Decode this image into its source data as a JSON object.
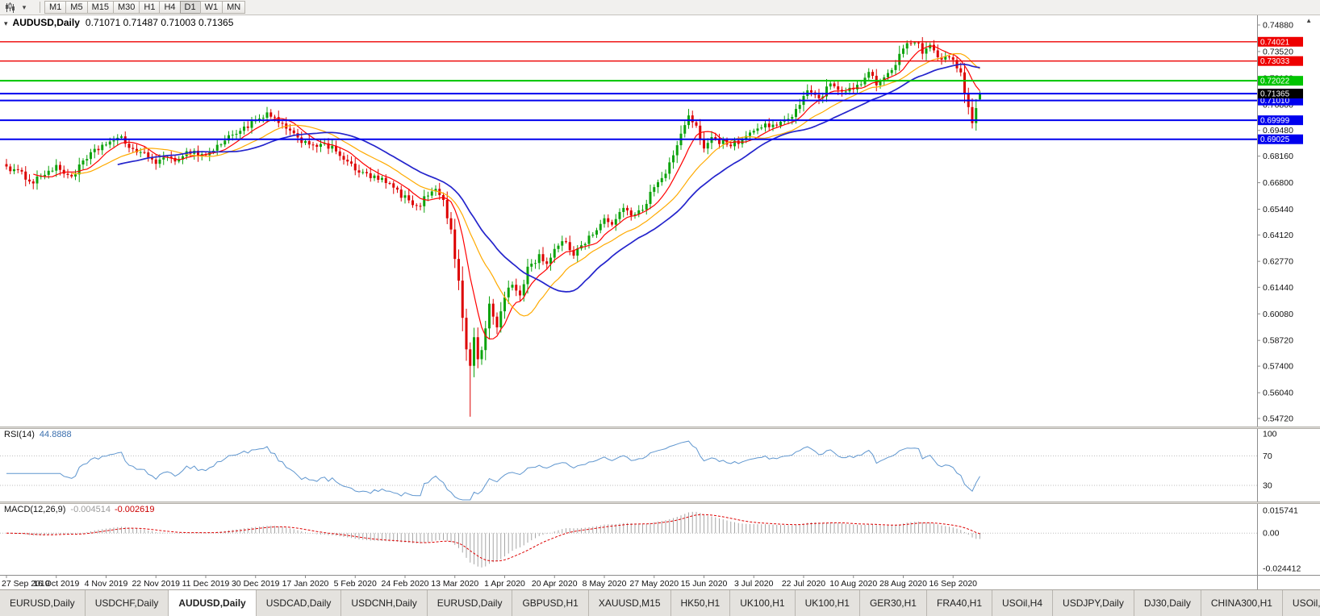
{
  "toolbar": {
    "dropdown_caret": "▾",
    "timeframes": [
      "M1",
      "M5",
      "M15",
      "M30",
      "H1",
      "H4",
      "D1",
      "W1",
      "MN"
    ],
    "active_timeframe": "D1"
  },
  "window": {
    "scroll_up_icon": "▲"
  },
  "chart": {
    "one_click_icon": "▾",
    "title_symbol": "AUDUSD,Daily",
    "ohlc_text": "0.71071 0.71487 0.71003 0.71365",
    "price_range": {
      "top": 0.7488,
      "bottom": 0.5472
    },
    "y_ticks": [
      "0.74880",
      "0.73520",
      "0.72160",
      "0.70800",
      "0.69480",
      "0.68160",
      "0.66800",
      "0.65440",
      "0.64120",
      "0.62770",
      "0.61440",
      "0.60080",
      "0.58720",
      "0.57400",
      "0.56040",
      "0.54720"
    ],
    "hlines": [
      {
        "price": 0.74021,
        "text": "0.74021",
        "color": "#ee0000",
        "width": 1.3
      },
      {
        "price": 0.73033,
        "text": "0.73033",
        "color": "#ee0000",
        "width": 1.3
      },
      {
        "price": 0.72022,
        "text": "0.72022",
        "color": "#00c400",
        "width": 2
      },
      {
        "price": 0.71365,
        "text": "0.71365",
        "color": "#0000ee",
        "width": 2
      },
      {
        "price": 0.7101,
        "text": "0.71010",
        "color": "#0000ee",
        "width": 2
      },
      {
        "price": 0.69999,
        "text": "0.69999",
        "color": "#0000ee",
        "width": 2
      },
      {
        "price": 0.69025,
        "text": "0.69025",
        "color": "#0000ee",
        "width": 2
      }
    ],
    "bid_label": {
      "price": 0.71365,
      "text": "0.71365",
      "bg": "#000000",
      "fg": "#ffffff"
    },
    "dates": [
      "27 Sep 2019",
      "16 Oct 2019",
      "4 Nov 2019",
      "22 Nov 2019",
      "11 Dec 2019",
      "30 Dec 2019",
      "17 Jan 2020",
      "5 Feb 2020",
      "24 Feb 2020",
      "13 Mar 2020",
      "1 Apr 2020",
      "20 Apr 2020",
      "8 May 2020",
      "27 May 2020",
      "15 Jun 2020",
      "3 Jul 2020",
      "22 Jul 2020",
      "10 Aug 2020",
      "28 Aug 2020",
      "16 Sep 2020"
    ],
    "bars_per_date_tick": 13,
    "candle_count": 255,
    "anchors": [
      [
        0,
        0.6763
      ],
      [
        4,
        0.6722
      ],
      [
        7,
        0.6687
      ],
      [
        10,
        0.6732
      ],
      [
        13,
        0.6755
      ],
      [
        17,
        0.6712
      ],
      [
        20,
        0.6782
      ],
      [
        23,
        0.684
      ],
      [
        26,
        0.6885
      ],
      [
        30,
        0.6902
      ],
      [
        33,
        0.6852
      ],
      [
        36,
        0.682
      ],
      [
        39,
        0.6792
      ],
      [
        44,
        0.6802
      ],
      [
        48,
        0.6842
      ],
      [
        52,
        0.682
      ],
      [
        56,
        0.6882
      ],
      [
        60,
        0.6942
      ],
      [
        65,
        0.6992
      ],
      [
        68,
        0.7025
      ],
      [
        71,
        0.6996
      ],
      [
        74,
        0.6932
      ],
      [
        78,
        0.6888
      ],
      [
        82,
        0.6872
      ],
      [
        86,
        0.6848
      ],
      [
        91,
        0.6742
      ],
      [
        95,
        0.6712
      ],
      [
        99,
        0.6682
      ],
      [
        104,
        0.6602
      ],
      [
        107,
        0.6548
      ],
      [
        110,
        0.6622
      ],
      [
        112,
        0.6662
      ],
      [
        114,
        0.6582
      ],
      [
        116,
        0.6432
      ],
      [
        117,
        0.6292
      ],
      [
        118,
        0.6192
      ],
      [
        119,
        0.5992
      ],
      [
        120,
        0.5812
      ],
      [
        121,
        0.5742
      ],
      [
        122,
        0.5892
      ],
      [
        123,
        0.5772
      ],
      [
        124,
        0.5822
      ],
      [
        125,
        0.5932
      ],
      [
        126,
        0.6072
      ],
      [
        127,
        0.5982
      ],
      [
        128,
        0.5942
      ],
      [
        130,
        0.6092
      ],
      [
        132,
        0.6162
      ],
      [
        134,
        0.6102
      ],
      [
        136,
        0.6242
      ],
      [
        139,
        0.6302
      ],
      [
        141,
        0.6272
      ],
      [
        143,
        0.6332
      ],
      [
        146,
        0.6382
      ],
      [
        148,
        0.6312
      ],
      [
        150,
        0.6362
      ],
      [
        153,
        0.6422
      ],
      [
        156,
        0.6492
      ],
      [
        158,
        0.6457
      ],
      [
        160,
        0.6542
      ],
      [
        163,
        0.6522
      ],
      [
        166,
        0.6552
      ],
      [
        169,
        0.6657
      ],
      [
        172,
        0.6722
      ],
      [
        175,
        0.6882
      ],
      [
        178,
        0.7012
      ],
      [
        180,
        0.6962
      ],
      [
        182,
        0.6862
      ],
      [
        184,
        0.6922
      ],
      [
        186,
        0.6892
      ],
      [
        189,
        0.6872
      ],
      [
        192,
        0.6902
      ],
      [
        195,
        0.6942
      ],
      [
        198,
        0.6982
      ],
      [
        201,
        0.6967
      ],
      [
        204,
        0.7002
      ],
      [
        206,
        0.7062
      ],
      [
        208,
        0.7127
      ],
      [
        210,
        0.7157
      ],
      [
        212,
        0.7112
      ],
      [
        214,
        0.7162
      ],
      [
        216,
        0.7187
      ],
      [
        218,
        0.7152
      ],
      [
        221,
        0.7157
      ],
      [
        223,
        0.7192
      ],
      [
        225,
        0.7237
      ],
      [
        227,
        0.7187
      ],
      [
        229,
        0.7222
      ],
      [
        231,
        0.7257
      ],
      [
        234,
        0.7367
      ],
      [
        236,
        0.7392
      ],
      [
        237,
        0.7412
      ],
      [
        239,
        0.7347
      ],
      [
        241,
        0.7372
      ],
      [
        243,
        0.7312
      ],
      [
        245,
        0.7332
      ],
      [
        247,
        0.7302
      ],
      [
        249,
        0.7232
      ],
      [
        251,
        0.7052
      ],
      [
        252,
        0.6996
      ],
      [
        253,
        0.7062
      ],
      [
        254,
        0.7136
      ]
    ],
    "spike": {
      "index": 121,
      "low": 0.5481
    },
    "last_candle": {
      "open": 0.71071,
      "high": 0.71487,
      "low": 0.71003,
      "close": 0.71365
    },
    "ma": [
      {
        "period": 8,
        "color": "#ff0000",
        "width": 1.2,
        "name": "ma-fast-red"
      },
      {
        "period": 18,
        "color": "#ffaa00",
        "width": 1.2,
        "name": "ma-mid-gold"
      },
      {
        "period": 30,
        "color": "#2424cc",
        "width": 1.7,
        "name": "ma-slow-blue"
      }
    ],
    "colors": {
      "up": "#0da30d",
      "down": "#dd0000",
      "axis_line": "#8c8c8c",
      "text": "#111111"
    }
  },
  "rsi": {
    "name_label": "RSI(14)",
    "value": "44.8888",
    "period": 14,
    "color": "#5f96cf",
    "levels": [
      {
        "text": "100",
        "value": 100,
        "line": false
      },
      {
        "text": "70",
        "value": 70,
        "line": true
      },
      {
        "text": "30",
        "value": 30,
        "line": true
      }
    ]
  },
  "macd": {
    "name_label": "MACD(12,26,9)",
    "main_value": "-0.004514",
    "signal_value": "-0.002619",
    "fast": 12,
    "slow": 26,
    "signal": 9,
    "scale": {
      "max": 0.015741,
      "min": -0.024412
    },
    "scale_labels": [
      {
        "text": "0.015741",
        "value": 0.015741
      },
      {
        "text": "0.00",
        "value": 0
      },
      {
        "text": "-0.024412",
        "value": -0.024412
      }
    ],
    "colors": {
      "hist": "#a6a6a6",
      "signal": "#dd0000"
    }
  },
  "tabs": {
    "active_index": 2,
    "items": [
      "EURUSD,Daily",
      "USDCHF,Daily",
      "AUDUSD,Daily",
      "USDCAD,Daily",
      "USDCNH,Daily",
      "EURUSD,Daily",
      "GBPUSD,H1",
      "XAUUSD,M15",
      "HK50,H1",
      "UK100,H1",
      "UK100,H1",
      "GER30,H1",
      "FRA40,H1",
      "USOil,H4",
      "USDJPY,Daily",
      "DJ30,Daily",
      "CHINA300,H1",
      "USOil,H"
    ]
  }
}
